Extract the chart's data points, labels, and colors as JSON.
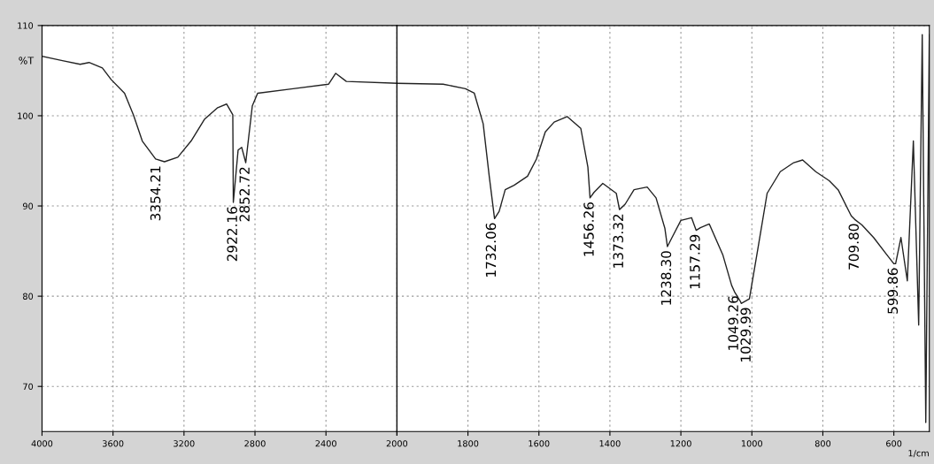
{
  "chart_data": [
    {
      "type": "line",
      "ylabel": "%T",
      "xlim": [
        4000,
        2000
      ],
      "xticks": [
        4000,
        3600,
        3200,
        2800,
        2400,
        2000
      ],
      "ylim": [
        65,
        110
      ],
      "yticks": [
        70,
        80,
        90,
        100,
        110
      ],
      "grid": true,
      "marker": "none",
      "line_style": "solid",
      "series": [
        {
          "color": "#222222",
          "x": [
            4000,
            3885,
            3785,
            3735,
            3660,
            3610,
            3535,
            3485,
            3435,
            3360,
            3310,
            3235,
            3160,
            3085,
            3010,
            2960,
            2925,
            2922,
            2895,
            2875,
            2852,
            2815,
            2785,
            2585,
            2385,
            2345,
            2285,
            2000
          ],
          "values": [
            106.6,
            106.1,
            105.7,
            105.9,
            105.3,
            104.0,
            102.5,
            100.1,
            97.2,
            95.2,
            94.9,
            95.4,
            97.2,
            99.6,
            100.9,
            101.3,
            100.1,
            90.4,
            96.2,
            96.5,
            94.8,
            101.1,
            102.5,
            103.0,
            103.5,
            104.7,
            103.8,
            103.6
          ]
        }
      ],
      "annotations": [
        {
          "text": "3354.21",
          "x": 3354.21,
          "y": 94.9
        },
        {
          "text": "2922.16",
          "x": 2922.16,
          "y": 90.4
        },
        {
          "text": "2852.72",
          "x": 2852.72,
          "y": 94.8
        }
      ]
    },
    {
      "type": "line",
      "xlabel": "1/cm",
      "tick_labels": "x",
      "xlim": [
        2000,
        500
      ],
      "xticks": [
        {
          "value": 2000,
          "label": null
        },
        1800,
        1600,
        1400,
        1200,
        1000,
        800,
        600
      ],
      "ylim": [
        65,
        110
      ],
      "yticks": [
        70,
        80,
        90,
        100,
        110
      ],
      "grid": true,
      "marker": "none",
      "line_style": "solid",
      "series": [
        {
          "color": "#222222",
          "x": [
            2000,
            1870,
            1807,
            1782,
            1757,
            1740,
            1725,
            1712,
            1695,
            1670,
            1632,
            1607,
            1582,
            1557,
            1520,
            1482,
            1462,
            1456,
            1445,
            1420,
            1382,
            1373,
            1357,
            1332,
            1295,
            1270,
            1245,
            1238,
            1225,
            1200,
            1170,
            1157,
            1145,
            1120,
            1082,
            1057,
            1049,
            1032,
            1030,
            1007,
            982,
            957,
            920,
            882,
            857,
            820,
            782,
            757,
            720,
            710,
            690,
            657,
            620,
            600,
            595,
            580,
            562,
            545,
            530,
            520,
            510,
            500
          ],
          "values": [
            103.6,
            103.5,
            103.0,
            102.5,
            99.1,
            93.3,
            88.6,
            89.4,
            91.8,
            92.3,
            93.3,
            95.2,
            98.2,
            99.3,
            99.9,
            98.6,
            94.3,
            90.9,
            91.5,
            92.5,
            91.4,
            89.6,
            90.2,
            91.8,
            92.1,
            90.9,
            87.5,
            85.5,
            86.5,
            88.4,
            88.7,
            87.3,
            87.6,
            88.0,
            84.6,
            81.2,
            80.5,
            79.4,
            79.2,
            79.7,
            85.5,
            91.4,
            93.8,
            94.8,
            95.1,
            93.8,
            92.8,
            91.8,
            88.9,
            88.5,
            87.9,
            86.5,
            84.6,
            83.6,
            83.6,
            86.5,
            81.7,
            97.2,
            76.8,
            109.0,
            66.0,
            109.0
          ]
        }
      ],
      "annotations": [
        {
          "text": "1732.06",
          "x": 1732.06,
          "y": 88.6
        },
        {
          "text": "1456.26",
          "x": 1456.26,
          "y": 90.9
        },
        {
          "text": "1373.32",
          "x": 1373.32,
          "y": 89.6
        },
        {
          "text": "1238.30",
          "x": 1238.3,
          "y": 85.5
        },
        {
          "text": "1157.29",
          "x": 1157.29,
          "y": 87.3
        },
        {
          "text": "1049.26",
          "x": 1049.26,
          "y": 80.5
        },
        {
          "text": "1029.99",
          "x": 1029.99,
          "y": 79.2
        },
        {
          "text": "709.80",
          "x": 709.8,
          "y": 88.5
        },
        {
          "text": "599.86",
          "x": 599.86,
          "y": 83.6
        }
      ]
    }
  ]
}
